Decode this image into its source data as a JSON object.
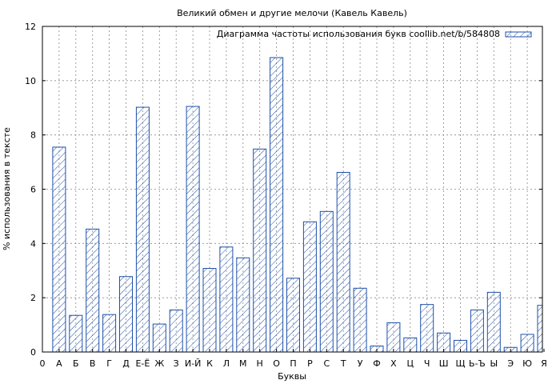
{
  "chart_data": {
    "type": "bar",
    "title": "Великий обмен и другие мелочи (Кавель Кавель)",
    "xlabel": "Буквы",
    "ylabel": "% использования в тексте",
    "legend": "Диаграмма частоты использования букв coollib.net/b/584808",
    "legend_position": "top-right",
    "ylim": [
      0,
      12
    ],
    "yticks": [
      0,
      2,
      4,
      6,
      8,
      10,
      12
    ],
    "grid": true,
    "x_origin_label": "0",
    "categories": [
      "А",
      "Б",
      "В",
      "Г",
      "Д",
      "Е-Ё",
      "Ж",
      "З",
      "И-Й",
      "К",
      "Л",
      "М",
      "Н",
      "О",
      "П",
      "Р",
      "С",
      "Т",
      "У",
      "Ф",
      "Х",
      "Ц",
      "Ч",
      "Ш",
      "Щ",
      "Ь-Ъ",
      "Ы",
      "Э",
      "Ю",
      "Я"
    ],
    "values": [
      7.55,
      1.35,
      4.53,
      1.38,
      2.78,
      9.02,
      1.03,
      1.55,
      9.05,
      3.08,
      3.87,
      3.47,
      7.48,
      10.85,
      2.72,
      4.8,
      5.18,
      6.62,
      2.35,
      0.22,
      1.08,
      0.52,
      1.75,
      0.7,
      0.43,
      1.55,
      2.2,
      0.17,
      0.65,
      1.72
    ],
    "colors": {
      "bar_stroke": "#1e4fa8",
      "hatch": "#1e4fa8",
      "grid": "#8a8a8a"
    }
  }
}
